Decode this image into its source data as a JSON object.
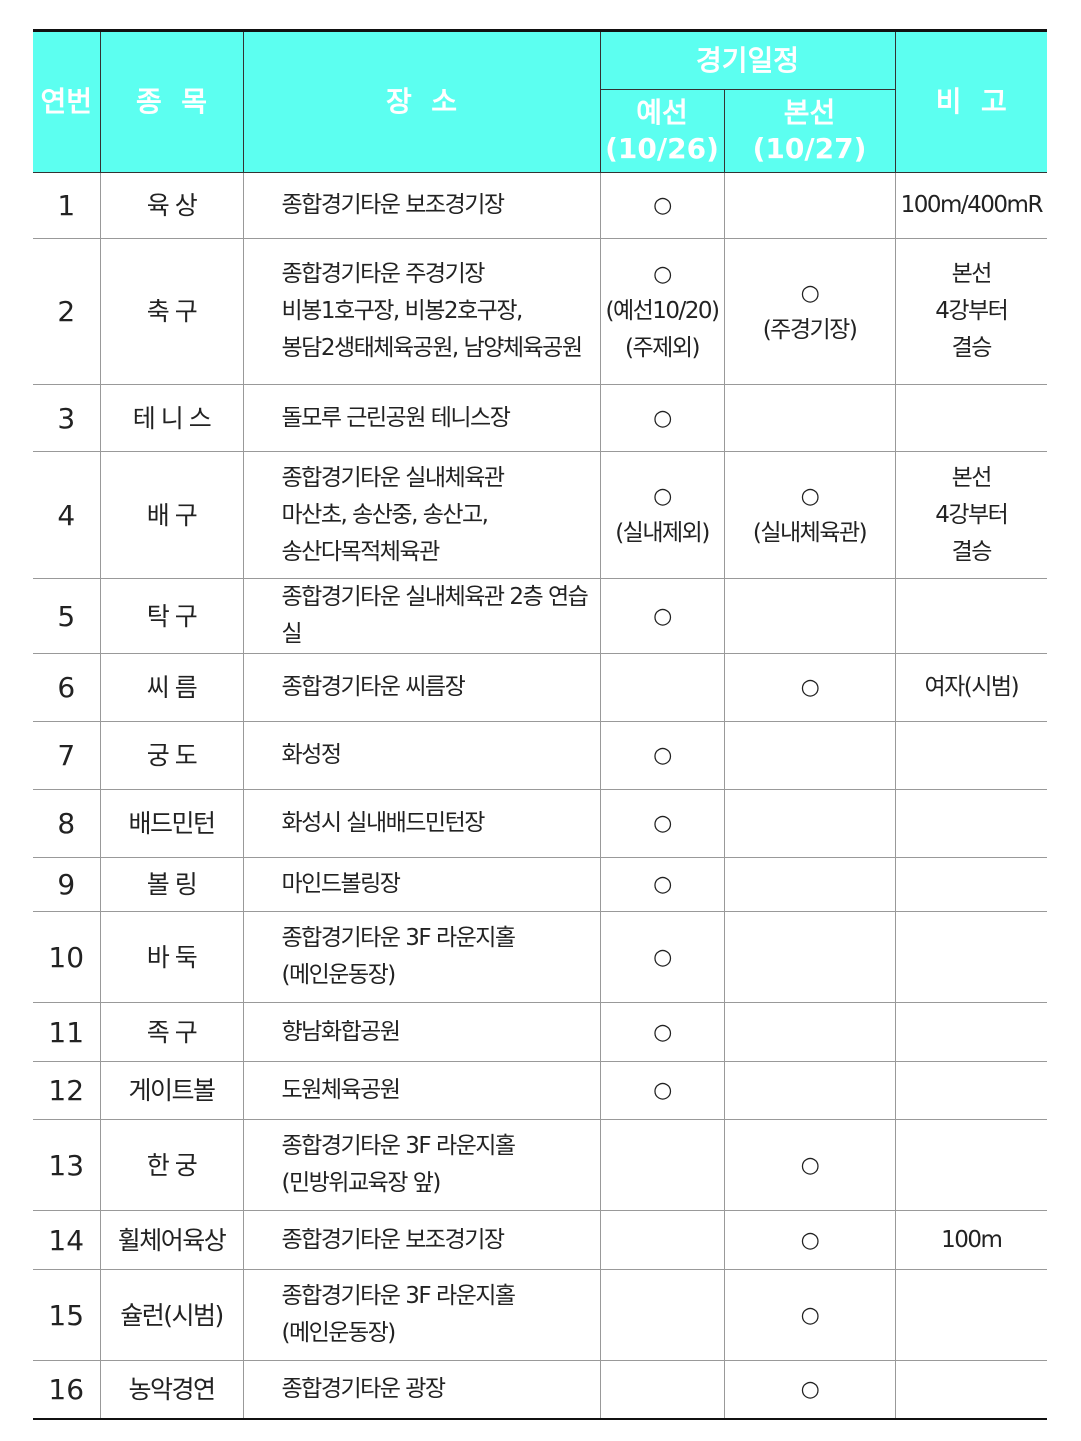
{
  "header": {
    "no": "연번",
    "sport": "종  목",
    "venue": "장  소",
    "schedule": "경기일정",
    "prelim": "예선",
    "prelim_date": "(10/26)",
    "final": "본선",
    "final_date": "(10/27)",
    "note": "비  고"
  },
  "rows": [
    {
      "no": "1",
      "sport": "육   상",
      "venue": [
        "종합경기타운 보조경기장"
      ],
      "prelim": [
        "○"
      ],
      "final": [],
      "note": [
        "100m/400mR"
      ]
    },
    {
      "no": "2",
      "sport": "축   구",
      "venue": [
        "종합경기타운 주경기장",
        "비봉1호구장, 비봉2호구장,",
        "봉담2생태체육공원, 남양체육공원"
      ],
      "prelim": [
        "○",
        "(예선10/20)",
        "(주제외)"
      ],
      "final": [
        "○",
        "(주경기장)"
      ],
      "note": [
        "본선",
        "4강부터",
        "결승"
      ]
    },
    {
      "no": "3",
      "sport": "테 니 스",
      "venue": [
        "돌모루 근린공원 테니스장"
      ],
      "prelim": [
        "○"
      ],
      "final": [],
      "note": []
    },
    {
      "no": "4",
      "sport": "배   구",
      "venue": [
        "종합경기타운 실내체육관",
        "마산초, 송산중, 송산고,",
        "송산다목적체육관"
      ],
      "prelim": [
        "○",
        "(실내제외)"
      ],
      "final": [
        "○",
        "(실내체육관)"
      ],
      "note": [
        "본선",
        "4강부터",
        "결승"
      ]
    },
    {
      "no": "5",
      "sport": "탁   구",
      "venue": [
        "종합경기타운 실내체육관 2층 연습실"
      ],
      "prelim": [
        "○"
      ],
      "final": [],
      "note": []
    },
    {
      "no": "6",
      "sport": "씨   름",
      "venue": [
        "종합경기타운 씨름장"
      ],
      "prelim": [],
      "final": [
        "○"
      ],
      "note": [
        "여자(시범)"
      ]
    },
    {
      "no": "7",
      "sport": "궁   도",
      "venue": [
        "화성정"
      ],
      "prelim": [
        "○"
      ],
      "final": [],
      "note": []
    },
    {
      "no": "8",
      "sport": "배드민턴",
      "venue": [
        "화성시 실내배드민턴장"
      ],
      "prelim": [
        "○"
      ],
      "final": [],
      "note": []
    },
    {
      "no": "9",
      "sport": "볼   링",
      "venue": [
        "마인드볼링장"
      ],
      "prelim": [
        "○"
      ],
      "final": [],
      "note": []
    },
    {
      "no": "10",
      "sport": "바   둑",
      "venue": [
        "종합경기타운 3F 라운지홀",
        "(메인운동장)"
      ],
      "prelim": [
        "○"
      ],
      "final": [],
      "note": []
    },
    {
      "no": "11",
      "sport": "족   구",
      "venue": [
        "향남화합공원"
      ],
      "prelim": [
        "○"
      ],
      "final": [],
      "note": []
    },
    {
      "no": "12",
      "sport": "게이트볼",
      "venue": [
        "도원체육공원"
      ],
      "prelim": [
        "○"
      ],
      "final": [],
      "note": []
    },
    {
      "no": "13",
      "sport": "한   궁",
      "venue": [
        "종합경기타운 3F 라운지홀",
        "(민방위교육장 앞)"
      ],
      "prelim": [],
      "final": [
        "○"
      ],
      "note": []
    },
    {
      "no": "14",
      "sport": "휠체어육상",
      "venue": [
        "종합경기타운 보조경기장"
      ],
      "prelim": [],
      "final": [
        "○"
      ],
      "note": [
        "100m"
      ]
    },
    {
      "no": "15",
      "sport": "슐런(시범)",
      "venue": [
        "종합경기타운 3F 라운지홀",
        "(메인운동장)"
      ],
      "prelim": [],
      "final": [
        "○"
      ],
      "note": []
    },
    {
      "no": "16",
      "sport": "농악경연",
      "venue": [
        "종합경기타운 광장"
      ],
      "prelim": [],
      "final": [
        "○"
      ],
      "note": []
    }
  ]
}
